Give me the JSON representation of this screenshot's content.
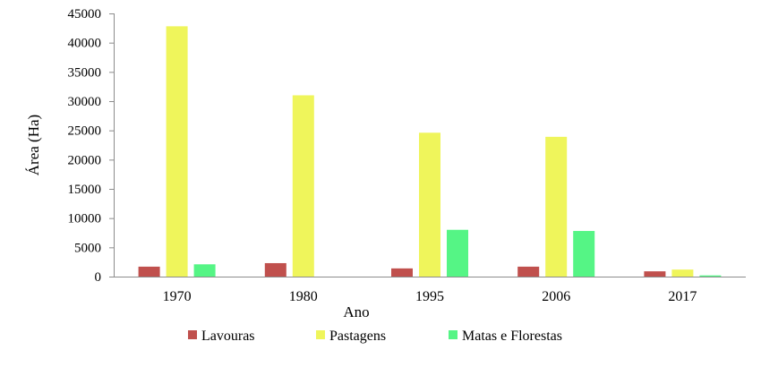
{
  "chart_data": {
    "type": "bar",
    "categories": [
      "1970",
      "1980",
      "1995",
      "2006",
      "2017"
    ],
    "series": [
      {
        "name": "Lavouras",
        "color": "#c0504d",
        "values": [
          1700,
          2300,
          1400,
          1700,
          900
        ]
      },
      {
        "name": "Pastagens",
        "color": "#eff55b",
        "values": [
          42800,
          31000,
          24600,
          23900,
          1200
        ]
      },
      {
        "name": "Matas e Florestas",
        "color": "#55f585",
        "values": [
          2100,
          null,
          8000,
          7800,
          200
        ]
      }
    ],
    "xlabel": "Ano",
    "ylabel": "Área (Ha)",
    "ylim": [
      0,
      45000
    ],
    "yticks": [
      "0",
      "5000",
      "10000",
      "15000",
      "20000",
      "25000",
      "30000",
      "35000",
      "40000",
      "45000"
    ],
    "grid": false,
    "legend_position": "bottom"
  }
}
